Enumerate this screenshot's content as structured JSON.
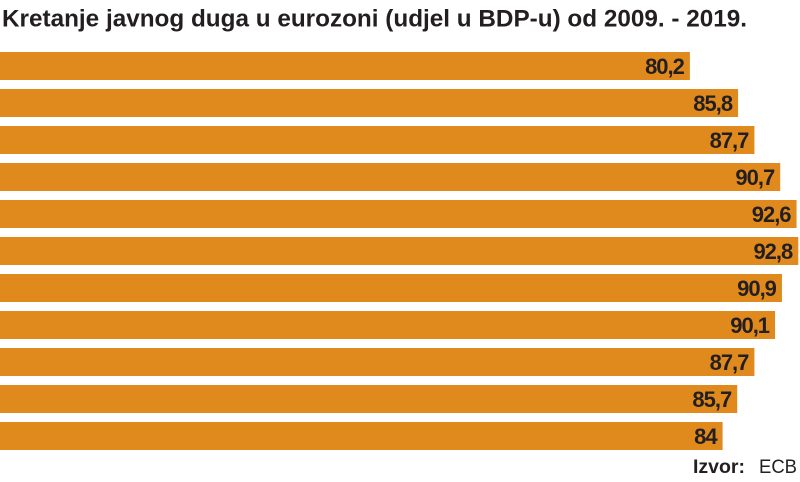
{
  "chart_data": {
    "type": "bar",
    "orientation": "horizontal",
    "title": "Kretanje javnog duga u eurozoni (udjel u BDP-u) od 2009. - 2019.",
    "categories": [
      null,
      null,
      null,
      null,
      null,
      null,
      null,
      null,
      null,
      null,
      null
    ],
    "values": [
      80.2,
      85.8,
      87.7,
      90.7,
      92.6,
      92.8,
      90.9,
      90.1,
      87.7,
      85.7,
      84
    ],
    "value_labels": [
      "80,2",
      "85,8",
      "87,7",
      "90,7",
      "92,6",
      "92,8",
      "90,9",
      "90,1",
      "87,7",
      "85,7",
      "84"
    ],
    "color": "#e08a1e",
    "xlim": [
      0,
      93
    ],
    "source_label": "Izvor:",
    "source": "ECB"
  }
}
